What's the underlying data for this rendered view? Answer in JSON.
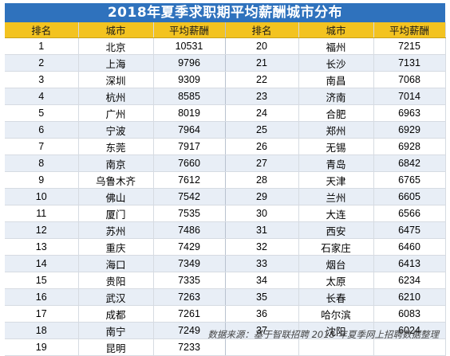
{
  "title": "2018年夏季求职期平均薪酬城市分布",
  "headers": [
    "排名",
    "城市",
    "平均薪酬",
    "排名",
    "城市",
    "平均薪酬"
  ],
  "rows": [
    [
      [
        "1",
        "北京",
        "10531"
      ],
      [
        "20",
        "福州",
        "7215"
      ]
    ],
    [
      [
        "2",
        "上海",
        "9796"
      ],
      [
        "21",
        "长沙",
        "7131"
      ]
    ],
    [
      [
        "3",
        "深圳",
        "9309"
      ],
      [
        "22",
        "南昌",
        "7068"
      ]
    ],
    [
      [
        "4",
        "杭州",
        "8585"
      ],
      [
        "23",
        "济南",
        "7014"
      ]
    ],
    [
      [
        "5",
        "广州",
        "8019"
      ],
      [
        "24",
        "合肥",
        "6963"
      ]
    ],
    [
      [
        "6",
        "宁波",
        "7964"
      ],
      [
        "25",
        "郑州",
        "6929"
      ]
    ],
    [
      [
        "7",
        "东莞",
        "7917"
      ],
      [
        "26",
        "无锡",
        "6928"
      ]
    ],
    [
      [
        "8",
        "南京",
        "7660"
      ],
      [
        "27",
        "青岛",
        "6842"
      ]
    ],
    [
      [
        "9",
        "乌鲁木齐",
        "7612"
      ],
      [
        "28",
        "天津",
        "6765"
      ]
    ],
    [
      [
        "10",
        "佛山",
        "7542"
      ],
      [
        "29",
        "兰州",
        "6605"
      ]
    ],
    [
      [
        "11",
        "厦门",
        "7535"
      ],
      [
        "30",
        "大连",
        "6566"
      ]
    ],
    [
      [
        "12",
        "苏州",
        "7486"
      ],
      [
        "31",
        "西安",
        "6475"
      ]
    ],
    [
      [
        "13",
        "重庆",
        "7429"
      ],
      [
        "32",
        "石家庄",
        "6460"
      ]
    ],
    [
      [
        "14",
        "海口",
        "7349"
      ],
      [
        "33",
        "烟台",
        "6413"
      ]
    ],
    [
      [
        "15",
        "贵阳",
        "7335"
      ],
      [
        "34",
        "太原",
        "6234"
      ]
    ],
    [
      [
        "16",
        "武汉",
        "7263"
      ],
      [
        "35",
        "长春",
        "6210"
      ]
    ],
    [
      [
        "17",
        "成都",
        "7261"
      ],
      [
        "36",
        "哈尔滨",
        "6083"
      ]
    ],
    [
      [
        "18",
        "南宁",
        "7249"
      ],
      [
        "37",
        "沈阳",
        "6024"
      ]
    ],
    [
      [
        "19",
        "昆明",
        "7233"
      ],
      [
        "",
        "",
        ""
      ]
    ]
  ],
  "source": "数据来源：基于智联招聘 2018 年夏季网上招聘数据整理"
}
